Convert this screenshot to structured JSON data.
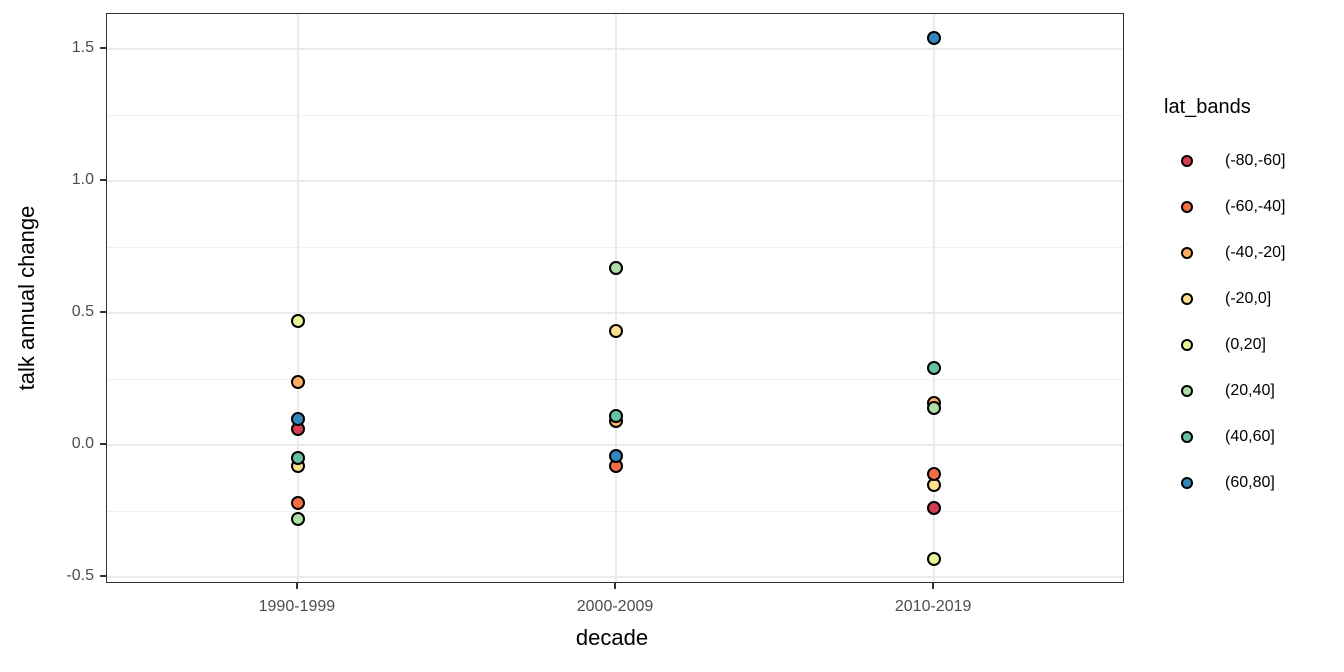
{
  "chart_data": {
    "type": "scatter",
    "title": "",
    "xlabel": "decade",
    "ylabel": "talk annual change",
    "categories": [
      "1990-1999",
      "2000-2009",
      "2010-2019"
    ],
    "y_tick_labels": [
      "1.5",
      "1.0",
      "0.5",
      "0.0",
      "-0.5"
    ],
    "y_tick_values": [
      1.5,
      1.0,
      0.5,
      0.0,
      -0.5
    ],
    "y_minor_values": [
      1.25,
      0.75,
      0.25,
      -0.25
    ],
    "ylim": [
      -0.53,
      1.63
    ],
    "grid": "horizontal major+minor, vertical major only",
    "legend_position": "right",
    "legend_title": "lat_bands",
    "point_outline_color": "#000000",
    "grid_color": "#ebebeb",
    "panel_border_color": "#333333",
    "tick_label_color": "#4d4d4d",
    "series": [
      {
        "name": "(-80,-60]",
        "color": "#d53e4f",
        "points": [
          {
            "x": "1990-1999",
            "y": 0.06
          },
          {
            "x": "2010-2019",
            "y": -0.24
          }
        ]
      },
      {
        "name": "(-60,-40]",
        "color": "#f46d43",
        "points": [
          {
            "x": "1990-1999",
            "y": -0.22
          },
          {
            "x": "2000-2009",
            "y": -0.08
          },
          {
            "x": "2010-2019",
            "y": -0.11,
            "z": 9
          }
        ]
      },
      {
        "name": "(-40,-20]",
        "color": "#fdae61",
        "points": [
          {
            "x": "1990-1999",
            "y": 0.24
          },
          {
            "x": "2000-2009",
            "y": 0.09
          },
          {
            "x": "2010-2019",
            "y": 0.16
          }
        ]
      },
      {
        "name": "(-20,0]",
        "color": "#fee08b",
        "points": [
          {
            "x": "1990-1999",
            "y": -0.08
          },
          {
            "x": "2000-2009",
            "y": 0.43
          },
          {
            "x": "2010-2019",
            "y": -0.15
          }
        ]
      },
      {
        "name": "(0,20]",
        "color": "#e6f598",
        "points": [
          {
            "x": "1990-1999",
            "y": 0.47
          },
          {
            "x": "2010-2019",
            "y": -0.43
          }
        ]
      },
      {
        "name": "(20,40]",
        "color": "#abdda4",
        "points": [
          {
            "x": "1990-1999",
            "y": -0.28
          },
          {
            "x": "2000-2009",
            "y": 0.67
          },
          {
            "x": "2010-2019",
            "y": 0.14
          }
        ]
      },
      {
        "name": "(40,60]",
        "color": "#66c2a5",
        "points": [
          {
            "x": "1990-1999",
            "y": -0.05
          },
          {
            "x": "2000-2009",
            "y": 0.11
          },
          {
            "x": "2010-2019",
            "y": 0.29
          }
        ]
      },
      {
        "name": "(60,80]",
        "color": "#3288bd",
        "points": [
          {
            "x": "1990-1999",
            "y": 0.1
          },
          {
            "x": "2000-2009",
            "y": -0.04
          },
          {
            "x": "2010-2019",
            "y": 1.54
          }
        ]
      }
    ]
  }
}
